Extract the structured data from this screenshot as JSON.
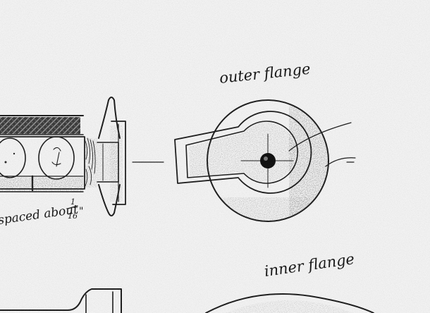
{
  "labels": {
    "outer_flange": "outer flange",
    "inner_flange": "inner flange",
    "spaced_note": "spaced about",
    "fraction_num": "1",
    "fraction_den": "16",
    "inch_mark": "\""
  },
  "paper_color": "#f2f2f2",
  "ink_color": "#1c1c1c"
}
